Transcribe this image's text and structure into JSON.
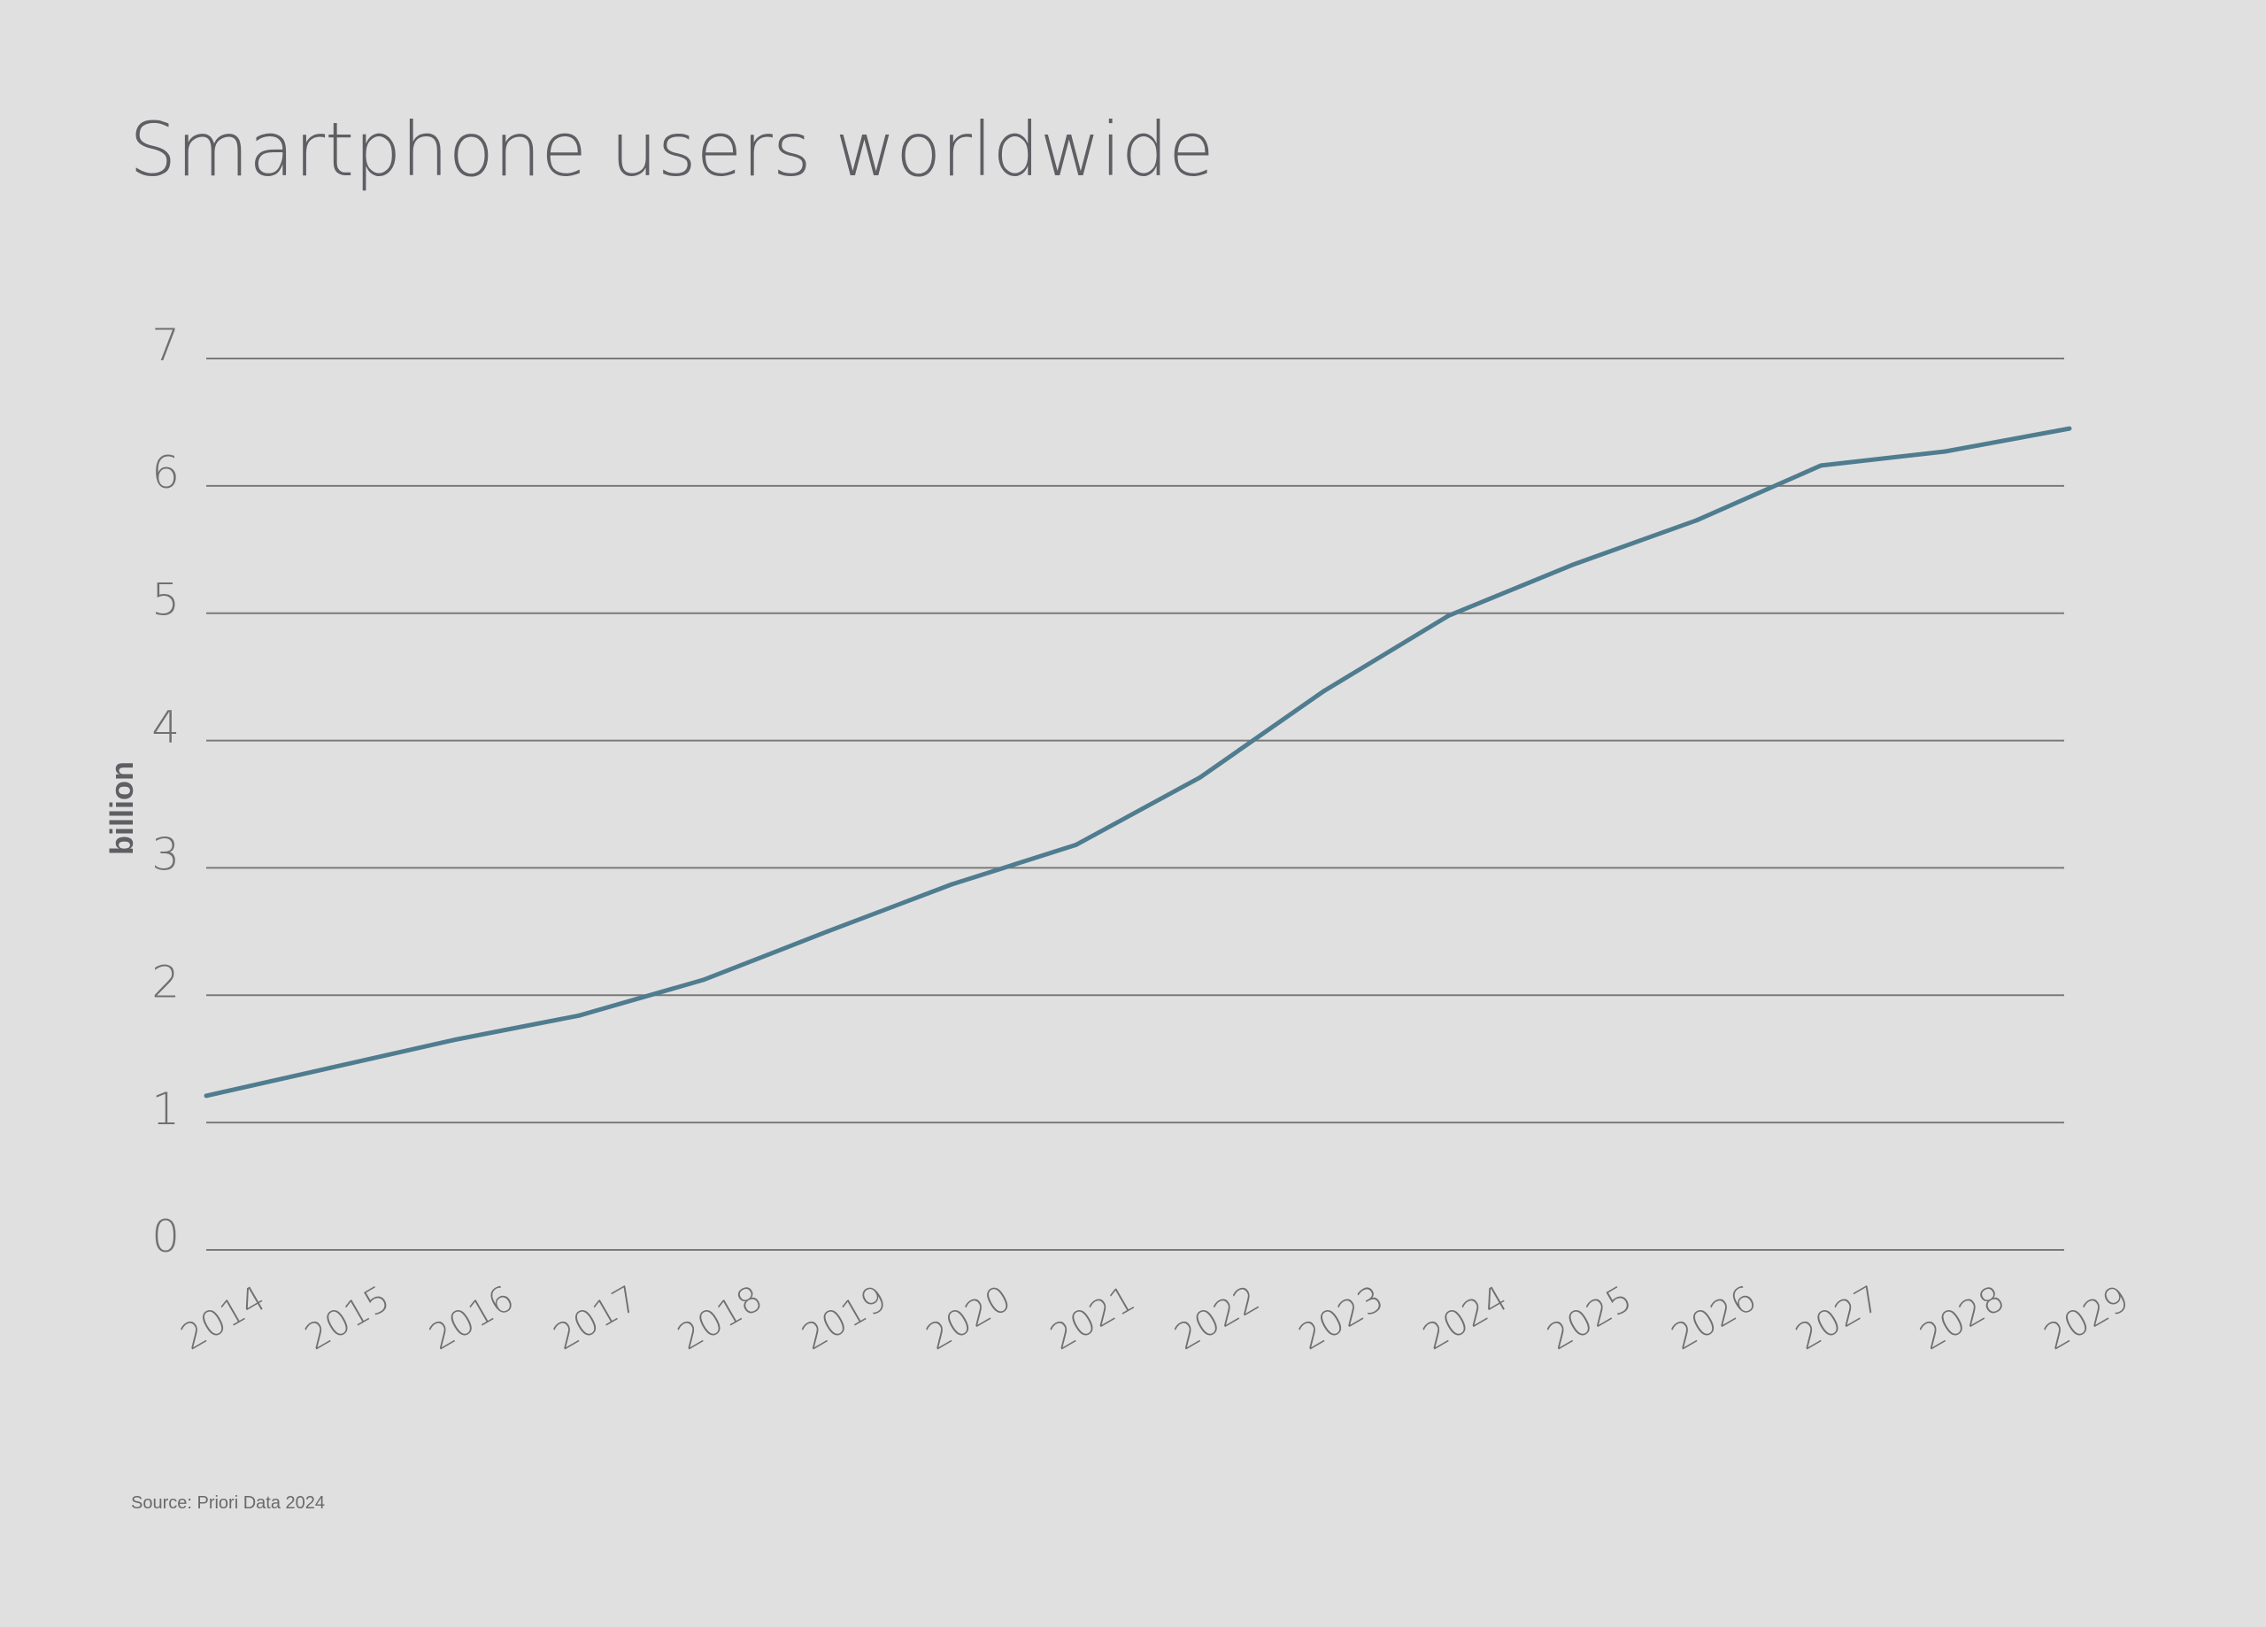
{
  "chart_data": {
    "type": "line",
    "title": "Smartphone users worldwide",
    "xlabel": "",
    "ylabel": "billion",
    "source": "Source: Priori Data 2024",
    "ylim": [
      0,
      7
    ],
    "yticks": [
      "0",
      "1",
      "2",
      "3",
      "4",
      "5",
      "6",
      "7"
    ],
    "grid": true,
    "categories": [
      "2014",
      "2015",
      "2016",
      "2017",
      "2018",
      "2019",
      "2020",
      "2021",
      "2022",
      "2023",
      "2024",
      "2025",
      "2026",
      "2027",
      "2028",
      "2029"
    ],
    "series": [
      {
        "name": "Smartphone users",
        "color": "#4f7d8f",
        "values": [
          1.21,
          1.43,
          1.65,
          1.84,
          2.12,
          2.5,
          2.87,
          3.18,
          3.71,
          4.39,
          4.98,
          5.38,
          5.73,
          6.16,
          6.27,
          6.45
        ]
      }
    ]
  }
}
